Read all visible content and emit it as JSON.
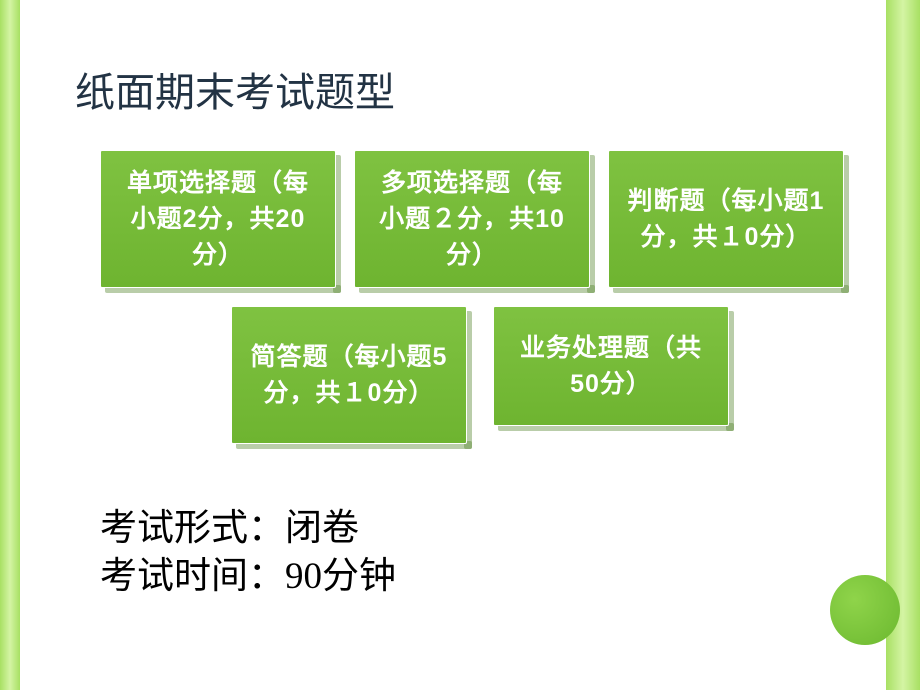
{
  "title": "纸面期末考试题型",
  "boxes": {
    "row1": [
      "单项选择题（每小题2分，共20分）",
      "多项选择题（每小题２分，共10分）",
      "判断题（每小题1分，共１0分）"
    ],
    "row2": [
      "简答题（每小题5分，共１0分）",
      "业务处理题（共50分）"
    ]
  },
  "exam_format_label": "考试形式：",
  "exam_format_value": "闭卷",
  "exam_time_label": "考试时间：",
  "exam_time_value": "90分钟",
  "colors": {
    "box_bg_top": "#7fc241",
    "box_bg_bottom": "#6eb430",
    "box_text": "#ffffff",
    "title_color": "#223344",
    "stripe_light": "#d4f4a4",
    "stripe_dark": "#a8e063",
    "circle_light": "#8fd44a",
    "circle_dark": "#6bb82f"
  }
}
